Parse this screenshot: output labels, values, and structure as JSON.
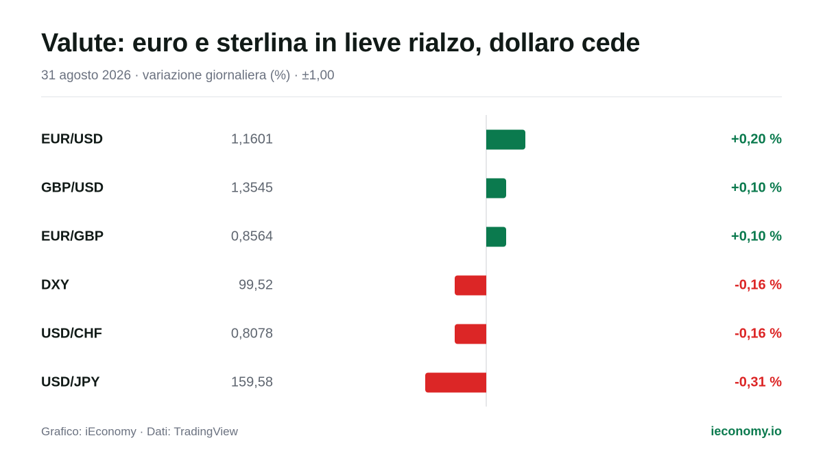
{
  "header": {
    "title": "Valute: euro e sterlina in lieve rialzo, dollaro cede",
    "subtitle": "31 agosto 2026 · variazione giornaliera (%) · ±1,00"
  },
  "footer": {
    "source": "Grafico: iEconomy · Dati: TradingView",
    "brand": "ieconomy.io"
  },
  "colors": {
    "positive": "#0b7a4e",
    "negative": "#dc2626",
    "brand": "#0b7a4e"
  },
  "chart_data": {
    "type": "bar",
    "orientation": "horizontal",
    "xlim": [
      -1.0,
      1.0
    ],
    "categories": [
      "EUR/USD",
      "GBP/USD",
      "EUR/GBP",
      "DXY",
      "USD/CHF",
      "USD/JPY"
    ],
    "prices": [
      "1,1601",
      "1,3545",
      "0,8564",
      "99,52",
      "0,8078",
      "159,58"
    ],
    "values": [
      0.2,
      0.1,
      0.1,
      -0.16,
      -0.16,
      -0.31
    ],
    "value_labels": [
      "+0,20 %",
      "+0,10 %",
      "+0,10 %",
      "-0,16 %",
      "-0,16 %",
      "-0,31 %"
    ]
  }
}
